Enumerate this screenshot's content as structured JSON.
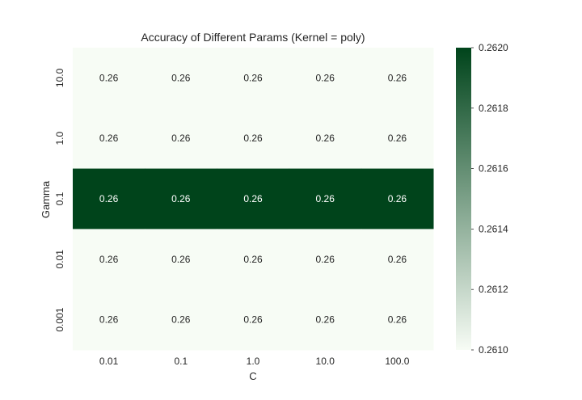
{
  "chart_data": {
    "type": "heatmap",
    "title": "Accuracy of Different Params (Kernel = poly)",
    "xlabel": "C",
    "ylabel": "Gamma",
    "x_categories": [
      "0.01",
      "0.1",
      "1.0",
      "10.0",
      "100.0"
    ],
    "y_categories": [
      "10.0",
      "1.0",
      "0.1",
      "0.01",
      "0.001"
    ],
    "values": [
      [
        0.261,
        0.261,
        0.261,
        0.261,
        0.261
      ],
      [
        0.261,
        0.261,
        0.261,
        0.261,
        0.261
      ],
      [
        0.262,
        0.262,
        0.262,
        0.262,
        0.262
      ],
      [
        0.261,
        0.261,
        0.261,
        0.261,
        0.261
      ],
      [
        0.261,
        0.261,
        0.261,
        0.261,
        0.261
      ]
    ],
    "cell_labels": [
      [
        "0.26",
        "0.26",
        "0.26",
        "0.26",
        "0.26"
      ],
      [
        "0.26",
        "0.26",
        "0.26",
        "0.26",
        "0.26"
      ],
      [
        "0.26",
        "0.26",
        "0.26",
        "0.26",
        "0.26"
      ],
      [
        "0.26",
        "0.26",
        "0.26",
        "0.26",
        "0.26"
      ],
      [
        "0.26",
        "0.26",
        "0.26",
        "0.26",
        "0.26"
      ]
    ],
    "colormap": "Greens",
    "colormap_low": "#f7fcf5",
    "colormap_high": "#00441b",
    "vmin": 0.261,
    "vmax": 0.262,
    "colorbar_ticks": [
      "0.2610",
      "0.2612",
      "0.2614",
      "0.2616",
      "0.2618",
      "0.2620"
    ],
    "grid": false
  }
}
